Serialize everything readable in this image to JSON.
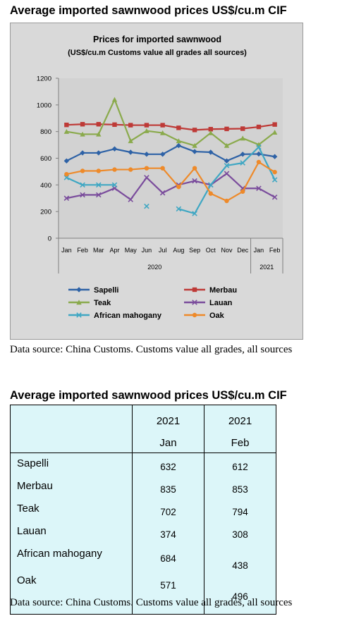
{
  "page": {
    "heading_1": "Average imported sawnwood prices US$/cu.m CIF",
    "heading_2": "Average imported sawnwood prices US$/cu.m CIF",
    "source_1": "Data source: China Customs. Customs value all grades, all sources",
    "source_2": "Data source: China Customs. Customs value all grades, all sources"
  },
  "chart_data": {
    "type": "line",
    "title": "Prices for imported sawnwood",
    "subtitle": "(US$/cu.m Customs value all grades all sources)",
    "categories": [
      "Jan",
      "Feb",
      "Mar",
      "Apr",
      "May",
      "Jun",
      "Jul",
      "Aug",
      "Sep",
      "Oct",
      "Nov",
      "Dec",
      "Jan",
      "Feb"
    ],
    "year_groups": [
      {
        "label": "2020",
        "start": 0,
        "end": 11
      },
      {
        "label": "2021",
        "start": 12,
        "end": 13
      }
    ],
    "ylim": [
      0,
      1200
    ],
    "yticks": [
      0,
      200,
      400,
      600,
      800,
      1000,
      1200
    ],
    "grid": false,
    "legend_position": "bottom",
    "series": [
      {
        "name": "Sapelli",
        "color": "#2e62a6",
        "marker": "diamond",
        "values": [
          580,
          640,
          640,
          670,
          645,
          630,
          630,
          695,
          650,
          645,
          580,
          630,
          632,
          612
        ]
      },
      {
        "name": "Merbau",
        "color": "#be3a37",
        "marker": "square",
        "values": [
          850,
          855,
          855,
          852,
          848,
          848,
          848,
          828,
          812,
          818,
          820,
          822,
          835,
          853
        ]
      },
      {
        "name": "Teak",
        "color": "#8aaa4c",
        "marker": "triangle",
        "values": [
          800,
          780,
          780,
          1040,
          730,
          805,
          790,
          730,
          695,
          790,
          695,
          750,
          702,
          794
        ]
      },
      {
        "name": "Lauan",
        "color": "#7a4c9c",
        "marker": "x",
        "values": [
          300,
          325,
          325,
          375,
          290,
          455,
          340,
          400,
          430,
          400,
          485,
          374,
          374,
          308
        ]
      },
      {
        "name": "African mahogany",
        "color": "#3fa7c3",
        "marker": "x",
        "values": [
          455,
          400,
          400,
          400,
          null,
          240,
          null,
          220,
          185,
          400,
          545,
          565,
          684,
          438
        ]
      },
      {
        "name": "Oak",
        "color": "#ee8a2a",
        "marker": "circle",
        "values": [
          480,
          505,
          505,
          515,
          515,
          525,
          525,
          385,
          525,
          335,
          280,
          350,
          571,
          496
        ]
      }
    ]
  },
  "table": {
    "header": [
      {
        "year": "2021",
        "month": "Jan"
      },
      {
        "year": "2021",
        "month": "Feb"
      }
    ],
    "rows": [
      {
        "label": "Sapelli",
        "jan": "632",
        "feb": "612"
      },
      {
        "label": "Merbau",
        "jan": "835",
        "feb": "853"
      },
      {
        "label": "Teak",
        "jan": "702",
        "feb": "794"
      },
      {
        "label": "Lauan",
        "jan": "374",
        "feb": "308"
      },
      {
        "label": "African mahogany",
        "jan": "684",
        "feb": "438"
      },
      {
        "label": "Oak",
        "jan": "571",
        "feb": "496"
      }
    ]
  }
}
